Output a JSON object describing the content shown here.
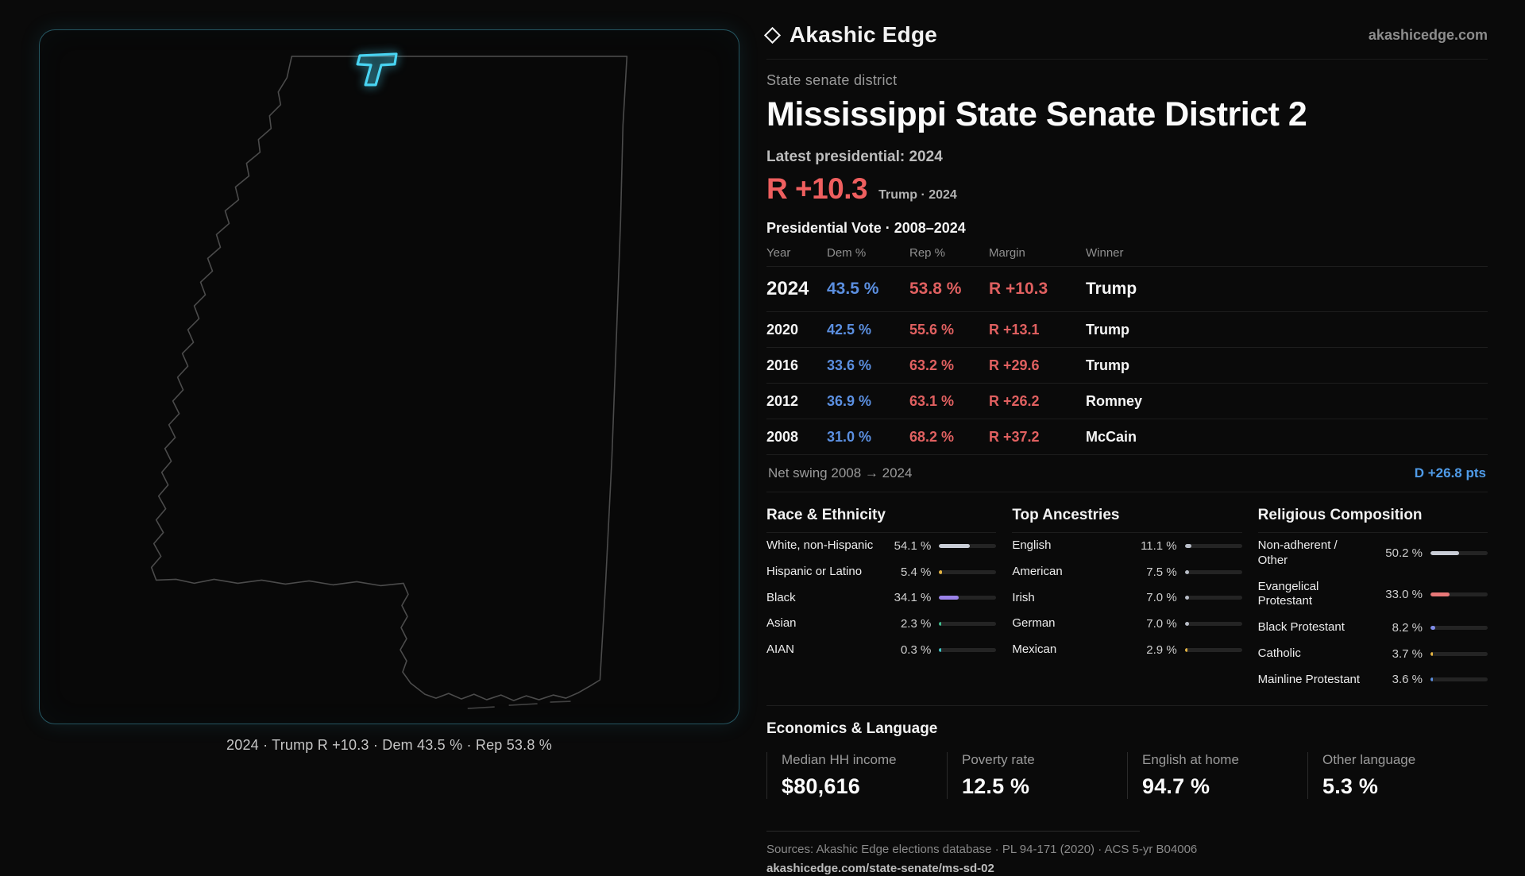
{
  "brand": {
    "name": "Akashic Edge",
    "site": "akashicedge.com"
  },
  "header": {
    "kicker": "State senate district",
    "title": "Mississippi State Senate District 2",
    "latest": "Latest presidential: 2024",
    "margin": "R +10.3",
    "margin_note": "Trump · 2024"
  },
  "map": {
    "caption": "2024 · Trump R +10.3 · Dem 43.5 % · Rep 53.8 %"
  },
  "vote": {
    "title": "Presidential Vote · 2008–2024",
    "columns": [
      "Year",
      "Dem %",
      "Rep %",
      "Margin",
      "Winner"
    ],
    "rows": [
      {
        "year": "2024",
        "dem": "43.5 %",
        "rep": "53.8 %",
        "margin": "R +10.3",
        "winner": "Trump"
      },
      {
        "year": "2020",
        "dem": "42.5 %",
        "rep": "55.6 %",
        "margin": "R +13.1",
        "winner": "Trump"
      },
      {
        "year": "2016",
        "dem": "33.6 %",
        "rep": "63.2 %",
        "margin": "R +29.6",
        "winner": "Trump"
      },
      {
        "year": "2012",
        "dem": "36.9 %",
        "rep": "63.1 %",
        "margin": "R +26.2",
        "winner": "Romney"
      },
      {
        "year": "2008",
        "dem": "31.0 %",
        "rep": "68.2 %",
        "margin": "R +37.2",
        "winner": "McCain"
      }
    ],
    "swing_label": "Net swing 2008 → 2024",
    "swing_value": "D +26.8 pts"
  },
  "demographics": [
    {
      "title": "Race & Ethnicity",
      "rows": [
        {
          "label": "White, non-Hispanic",
          "value": "54.1 %",
          "pct": 54.1,
          "color": "#c9cdd6"
        },
        {
          "label": "Hispanic or Latino",
          "value": "5.4 %",
          "pct": 5.4,
          "color": "#e3b341"
        },
        {
          "label": "Black",
          "value": "34.1 %",
          "pct": 34.1,
          "color": "#9a82e8"
        },
        {
          "label": "Asian",
          "value": "2.3 %",
          "pct": 2.3,
          "color": "#3fbf8f"
        },
        {
          "label": "AIAN",
          "value": "0.3 %",
          "pct": 0.3,
          "color": "#3fc6c6"
        }
      ]
    },
    {
      "title": "Top Ancestries",
      "rows": [
        {
          "label": "English",
          "value": "11.1 %",
          "pct": 11.1,
          "color": "#b9bec8"
        },
        {
          "label": "American",
          "value": "7.5 %",
          "pct": 7.5,
          "color": "#b9bec8"
        },
        {
          "label": "Irish",
          "value": "7.0 %",
          "pct": 7.0,
          "color": "#b9bec8"
        },
        {
          "label": "German",
          "value": "7.0 %",
          "pct": 7.0,
          "color": "#b9bec8"
        },
        {
          "label": "Mexican",
          "value": "2.9 %",
          "pct": 2.9,
          "color": "#e3b341"
        }
      ]
    },
    {
      "title": "Religious Composition",
      "rows": [
        {
          "label": "Non-adherent / Other",
          "value": "50.2 %",
          "pct": 50.2,
          "color": "#c9cdd6"
        },
        {
          "label": "Evangelical Protestant",
          "value": "33.0 %",
          "pct": 33.0,
          "color": "#e87878"
        },
        {
          "label": "Black Protestant",
          "value": "8.2 %",
          "pct": 8.2,
          "color": "#7f8ce8"
        },
        {
          "label": "Catholic",
          "value": "3.7 %",
          "pct": 3.7,
          "color": "#e3b341"
        },
        {
          "label": "Mainline Protestant",
          "value": "3.6 %",
          "pct": 3.6,
          "color": "#5b8fe0"
        }
      ]
    }
  ],
  "economics": {
    "title": "Economics & Language",
    "stats": [
      {
        "label": "Median HH income",
        "value": "$80,616"
      },
      {
        "label": "Poverty rate",
        "value": "12.5 %"
      },
      {
        "label": "English at home",
        "value": "94.7 %"
      },
      {
        "label": "Other language",
        "value": "5.3 %"
      }
    ]
  },
  "footer": {
    "sources": "Sources: Akashic Edge elections database · PL 94-171 (2020) · ACS 5-yr B04006",
    "permalink": "akashicedge.com/state-senate/ms-sd-02"
  },
  "colors": {
    "accent_cyan": "#49d4f2",
    "rep_red": "#e06060",
    "dem_blue": "#5b8fe0"
  },
  "chart_data": [
    {
      "type": "table",
      "title": "Presidential Vote · 2008–2024",
      "columns": [
        "Year",
        "Dem %",
        "Rep %",
        "Margin",
        "Winner"
      ],
      "rows": [
        [
          2024,
          43.5,
          53.8,
          "R +10.3",
          "Trump"
        ],
        [
          2020,
          42.5,
          55.6,
          "R +13.1",
          "Trump"
        ],
        [
          2016,
          33.6,
          63.2,
          "R +29.6",
          "Trump"
        ],
        [
          2012,
          36.9,
          63.1,
          "R +26.2",
          "Romney"
        ],
        [
          2008,
          31.0,
          68.2,
          "R +37.2",
          "McCain"
        ]
      ],
      "annotation": "Net swing 2008 → 2024: D +26.8 pts"
    },
    {
      "type": "bar",
      "title": "Race & Ethnicity",
      "categories": [
        "White, non-Hispanic",
        "Hispanic or Latino",
        "Black",
        "Asian",
        "AIAN"
      ],
      "values": [
        54.1,
        5.4,
        34.1,
        2.3,
        0.3
      ],
      "unit": "%",
      "xlim": [
        0,
        100
      ]
    },
    {
      "type": "bar",
      "title": "Top Ancestries",
      "categories": [
        "English",
        "American",
        "Irish",
        "German",
        "Mexican"
      ],
      "values": [
        11.1,
        7.5,
        7.0,
        7.0,
        2.9
      ],
      "unit": "%",
      "xlim": [
        0,
        100
      ]
    },
    {
      "type": "bar",
      "title": "Religious Composition",
      "categories": [
        "Non-adherent / Other",
        "Evangelical Protestant",
        "Black Protestant",
        "Catholic",
        "Mainline Protestant"
      ],
      "values": [
        50.2,
        33.0,
        8.2,
        3.7,
        3.6
      ],
      "unit": "%",
      "xlim": [
        0,
        100
      ]
    }
  ]
}
